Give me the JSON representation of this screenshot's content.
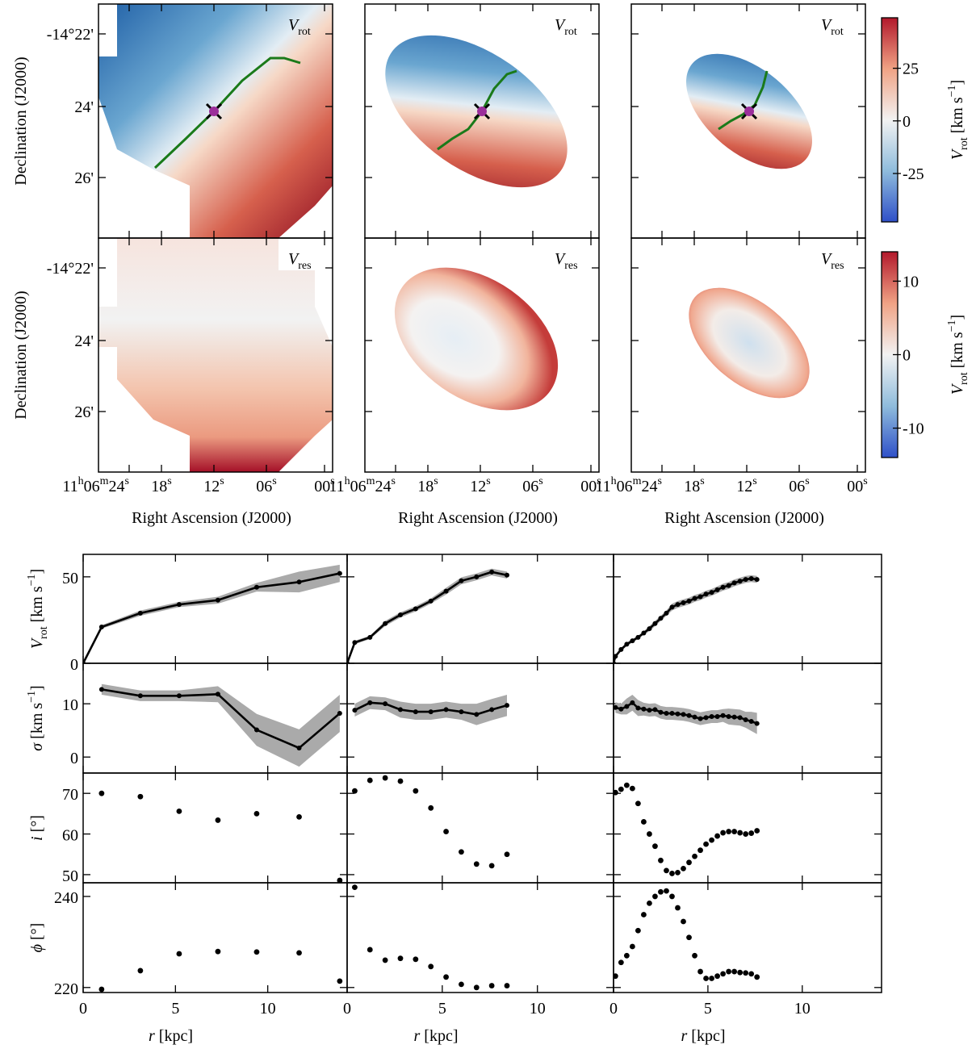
{
  "maps": {
    "panel_label_rot": [
      "V",
      "rot"
    ],
    "panel_label_res": [
      "V",
      "res"
    ],
    "ylabel": "Declination (J2000)",
    "xlabel": "Right Ascension (J2000)",
    "yticks": [
      "-14°22'",
      "24'",
      "26'"
    ],
    "xticks": [
      [
        "11",
        "h",
        "06",
        "m",
        "24",
        "s"
      ],
      [
        "18",
        "s"
      ],
      [
        "12",
        "s"
      ],
      [
        "06",
        "s"
      ],
      [
        "00",
        "s"
      ]
    ],
    "colorbars": [
      {
        "clim": [
          -48,
          49
        ],
        "ticks": [
          -25,
          0,
          25
        ],
        "label": [
          "V",
          "rot",
          " [km s",
          "−1",
          "]"
        ],
        "styles": [
          "italic",
          "sub",
          "normal",
          "sup",
          "normal"
        ]
      },
      {
        "clim": [
          -14,
          14
        ],
        "ticks": [
          -10,
          0,
          10
        ],
        "label": [
          "V",
          "rot",
          " [km s",
          "−1",
          "]"
        ],
        "styles": [
          "italic",
          "sub",
          "normal",
          "sup",
          "normal"
        ]
      }
    ]
  },
  "chart_data": [
    {
      "type": "line",
      "x": [
        0,
        1,
        3.1,
        5.2,
        7.3,
        9.4,
        11.7,
        13.9
      ],
      "values": [
        0,
        21,
        29,
        34,
        36.5,
        44,
        47,
        52
      ],
      "errors": [
        0,
        1,
        1.5,
        1.5,
        2,
        2.5,
        6,
        5
      ],
      "xlim": [
        0,
        14.3
      ],
      "ylim": [
        0,
        63
      ],
      "xticks": [
        0,
        5,
        10
      ],
      "yticks": [
        0,
        50
      ],
      "xtick_labels": false,
      "ytick_labels": true,
      "ylabel": [
        "V",
        "rot",
        " [km s",
        "−1",
        "]"
      ],
      "ylabel_styles": [
        "italic",
        "sub",
        "normal",
        "sup",
        "normal"
      ]
    },
    {
      "type": "line",
      "x": [
        0,
        0.4,
        1.2,
        2.0,
        2.8,
        3.6,
        4.4,
        5.2,
        6.0,
        6.8,
        7.6,
        8.4
      ],
      "values": [
        0,
        12,
        15,
        23,
        28,
        31.5,
        36,
        41.7,
        47.7,
        50,
        52.8,
        51
      ],
      "errors": [
        0,
        1,
        1,
        1.5,
        1.5,
        1.5,
        1.5,
        2,
        2,
        2,
        2,
        2
      ],
      "xlim": [
        0,
        14
      ],
      "ylim": [
        0,
        63
      ],
      "xticks": [
        0,
        5,
        10
      ],
      "yticks": [
        0,
        50
      ],
      "xtick_labels": false,
      "ytick_labels": false
    },
    {
      "type": "line",
      "x": [
        0,
        0.1,
        0.4,
        0.7,
        1.0,
        1.3,
        1.6,
        1.9,
        2.2,
        2.5,
        2.8,
        3.1,
        3.4,
        3.7,
        4.0,
        4.3,
        4.6,
        4.9,
        5.2,
        5.5,
        5.8,
        6.1,
        6.4,
        6.7,
        7.0,
        7.3,
        7.6
      ],
      "values": [
        0,
        4,
        8,
        11,
        13,
        15,
        17.5,
        20,
        23,
        26,
        29,
        32.5,
        34,
        35,
        36,
        37.5,
        38.5,
        40,
        41,
        42.5,
        44,
        45,
        46.5,
        47.5,
        48.5,
        49,
        48.5
      ],
      "errors": [
        0,
        1,
        1,
        1,
        1,
        1,
        1,
        1.5,
        1.5,
        1.5,
        1.5,
        2,
        2,
        2,
        2,
        2,
        2,
        2,
        2,
        2,
        2,
        2,
        2,
        2,
        2,
        2,
        2
      ],
      "xlim": [
        0,
        14.2
      ],
      "ylim": [
        0,
        63
      ],
      "xticks": [
        0,
        5,
        10
      ],
      "yticks": [
        0,
        50
      ],
      "xtick_labels": false,
      "ytick_labels": false
    },
    {
      "type": "line",
      "x": [
        1,
        3.1,
        5.2,
        7.3,
        9.4,
        11.7,
        13.9
      ],
      "values": [
        12.7,
        11.5,
        11.5,
        11.8,
        5.1,
        1.7,
        8.2
      ],
      "errors": [
        1,
        1,
        1,
        1.5,
        3,
        3.5,
        3.5
      ],
      "xlim": [
        0,
        14.3
      ],
      "ylim": [
        -3,
        17.6
      ],
      "xticks": [
        0,
        5,
        10
      ],
      "yticks": [
        0,
        10
      ],
      "xtick_labels": false,
      "ytick_labels": true,
      "ylabel": [
        "σ",
        " [km s",
        "−1",
        "]"
      ],
      "ylabel_styles": [
        "italic",
        "normal",
        "sup",
        "normal"
      ]
    },
    {
      "type": "line",
      "x": [
        0.4,
        1.2,
        2.0,
        2.8,
        3.6,
        4.4,
        5.2,
        6.0,
        6.8,
        7.6,
        8.4
      ],
      "values": [
        8.8,
        10.2,
        10,
        8.9,
        8.5,
        8.5,
        8.9,
        8.5,
        8,
        8.9,
        9.7
      ],
      "errors": [
        1.2,
        1.2,
        1.2,
        1.5,
        1.5,
        1.5,
        1.5,
        1.5,
        2,
        2,
        2
      ],
      "xlim": [
        0,
        14
      ],
      "ylim": [
        -3,
        17.6
      ],
      "xticks": [
        0,
        5,
        10
      ],
      "yticks": [
        0,
        10
      ],
      "xtick_labels": false,
      "ytick_labels": false
    },
    {
      "type": "line",
      "x": [
        0.1,
        0.4,
        0.7,
        1.0,
        1.3,
        1.6,
        1.9,
        2.2,
        2.5,
        2.8,
        3.1,
        3.4,
        3.7,
        4.0,
        4.3,
        4.6,
        4.9,
        5.2,
        5.5,
        5.8,
        6.1,
        6.4,
        6.7,
        7.0,
        7.3,
        7.6
      ],
      "values": [
        9.3,
        9.0,
        9.5,
        10.2,
        9.2,
        9.0,
        8.8,
        8.9,
        8.4,
        8.2,
        8.2,
        8.1,
        8.0,
        7.8,
        7.5,
        7.2,
        7.4,
        7.6,
        7.6,
        7.8,
        7.6,
        7.5,
        7.4,
        7.0,
        6.7,
        6.3
      ],
      "errors": [
        1,
        1,
        1.5,
        1.5,
        1.5,
        1.2,
        1.2,
        1.2,
        1.2,
        1.2,
        1.2,
        1.2,
        1.2,
        1.2,
        1.2,
        1.2,
        1.2,
        1.2,
        1.2,
        1.2,
        1.5,
        1.5,
        1.5,
        1.5,
        1.8,
        2
      ],
      "xlim": [
        0,
        14.2
      ],
      "ylim": [
        -3,
        17.6
      ],
      "xticks": [
        0,
        5,
        10
      ],
      "yticks": [
        0,
        10
      ],
      "xtick_labels": false,
      "ytick_labels": false
    },
    {
      "type": "scatter",
      "x": [
        1,
        3.1,
        5.2,
        7.3,
        9.4,
        11.7,
        13.9
      ],
      "values": [
        70,
        69.2,
        65.6,
        63.4,
        65,
        64.2,
        48.6
      ],
      "xlim": [
        0,
        14.3
      ],
      "ylim": [
        48,
        75
      ],
      "xticks": [
        0,
        5,
        10
      ],
      "yticks": [
        50,
        60,
        70
      ],
      "xtick_labels": false,
      "ytick_labels": true,
      "ylabel": [
        "i",
        " [°]"
      ],
      "ylabel_styles": [
        "italic",
        "normal"
      ]
    },
    {
      "type": "scatter",
      "x": [
        0.4,
        1.2,
        2.0,
        2.8,
        3.6,
        4.4,
        5.2,
        6.0,
        6.8,
        7.6,
        8.4
      ],
      "values": [
        70.6,
        73.2,
        73.8,
        73,
        70.6,
        66.4,
        60.6,
        55.6,
        52.6,
        52.2,
        55
      ],
      "xlim": [
        0,
        14
      ],
      "ylim": [
        48,
        75
      ],
      "xticks": [
        0,
        5,
        10
      ],
      "yticks": [
        50,
        60,
        70
      ],
      "xtick_labels": false,
      "ytick_labels": false
    },
    {
      "type": "scatter",
      "x": [
        0.1,
        0.4,
        0.7,
        1.0,
        1.3,
        1.6,
        1.9,
        2.2,
        2.5,
        2.8,
        3.1,
        3.4,
        3.7,
        4.0,
        4.3,
        4.6,
        4.9,
        5.2,
        5.5,
        5.8,
        6.1,
        6.4,
        6.7,
        7.0,
        7.3,
        7.6
      ],
      "values": [
        70.2,
        71,
        72,
        71.2,
        67.5,
        63,
        60,
        57,
        53.5,
        51,
        50.3,
        50.5,
        51.5,
        53,
        54.5,
        56,
        57.5,
        58.5,
        59.5,
        60.3,
        60.6,
        60.6,
        60.3,
        60,
        60.2,
        60.8
      ],
      "xlim": [
        0,
        14.2
      ],
      "ylim": [
        48,
        75
      ],
      "xticks": [
        0,
        5,
        10
      ],
      "yticks": [
        50,
        60,
        70
      ],
      "xtick_labels": false,
      "ytick_labels": false
    },
    {
      "type": "scatter",
      "x": [
        1,
        3.1,
        5.2,
        7.3,
        9.4,
        11.7,
        13.9
      ],
      "values": [
        219.6,
        223.7,
        227.4,
        227.9,
        227.8,
        227.6,
        221.4
      ],
      "xlim": [
        0,
        14.3
      ],
      "ylim": [
        218.9,
        243
      ],
      "xticks": [
        0,
        5,
        10
      ],
      "yticks": [
        220,
        240
      ],
      "xtick_labels": true,
      "ytick_labels": true,
      "ylabel": [
        "ϕ",
        " [°]"
      ],
      "ylabel_styles": [
        "italic",
        "normal"
      ],
      "xlabel": [
        "r",
        " [kpc]"
      ],
      "xlabel_styles": [
        "italic",
        "normal"
      ]
    },
    {
      "type": "scatter",
      "x": [
        0.4,
        1.2,
        2.0,
        2.8,
        3.6,
        4.4,
        5.2,
        6.0,
        6.8,
        7.6,
        8.4
      ],
      "values": [
        242,
        228.3,
        226,
        226.4,
        226.2,
        224.6,
        222.3,
        220.7,
        220,
        220.4,
        220.4
      ],
      "xlim": [
        0,
        14
      ],
      "ylim": [
        218.9,
        243
      ],
      "xticks": [
        0,
        5,
        10
      ],
      "yticks": [
        220,
        240
      ],
      "xtick_labels": true,
      "ytick_labels": false,
      "xlabel": [
        "r",
        " [kpc]"
      ],
      "xlabel_styles": [
        "italic",
        "normal"
      ]
    },
    {
      "type": "scatter",
      "x": [
        0.1,
        0.4,
        0.7,
        1.0,
        1.3,
        1.6,
        1.9,
        2.2,
        2.5,
        2.8,
        3.1,
        3.4,
        3.7,
        4.0,
        4.3,
        4.6,
        4.9,
        5.2,
        5.5,
        5.8,
        6.1,
        6.4,
        6.7,
        7.0,
        7.3,
        7.6
      ],
      "values": [
        222.5,
        225.5,
        227,
        229,
        232.5,
        236,
        238.5,
        240,
        241,
        241.2,
        240,
        237.5,
        234.5,
        231,
        227,
        223.5,
        222,
        222,
        222.5,
        223,
        223.5,
        223.5,
        223.3,
        223.2,
        223,
        222.3
      ],
      "xlim": [
        0,
        14.2
      ],
      "ylim": [
        218.9,
        243
      ],
      "xticks": [
        0,
        5,
        10
      ],
      "yticks": [
        220,
        240
      ],
      "xtick_labels": true,
      "ytick_labels": false,
      "xlabel": [
        "r",
        " [kpc]"
      ],
      "xlabel_styles": [
        "italic",
        "normal"
      ]
    }
  ]
}
